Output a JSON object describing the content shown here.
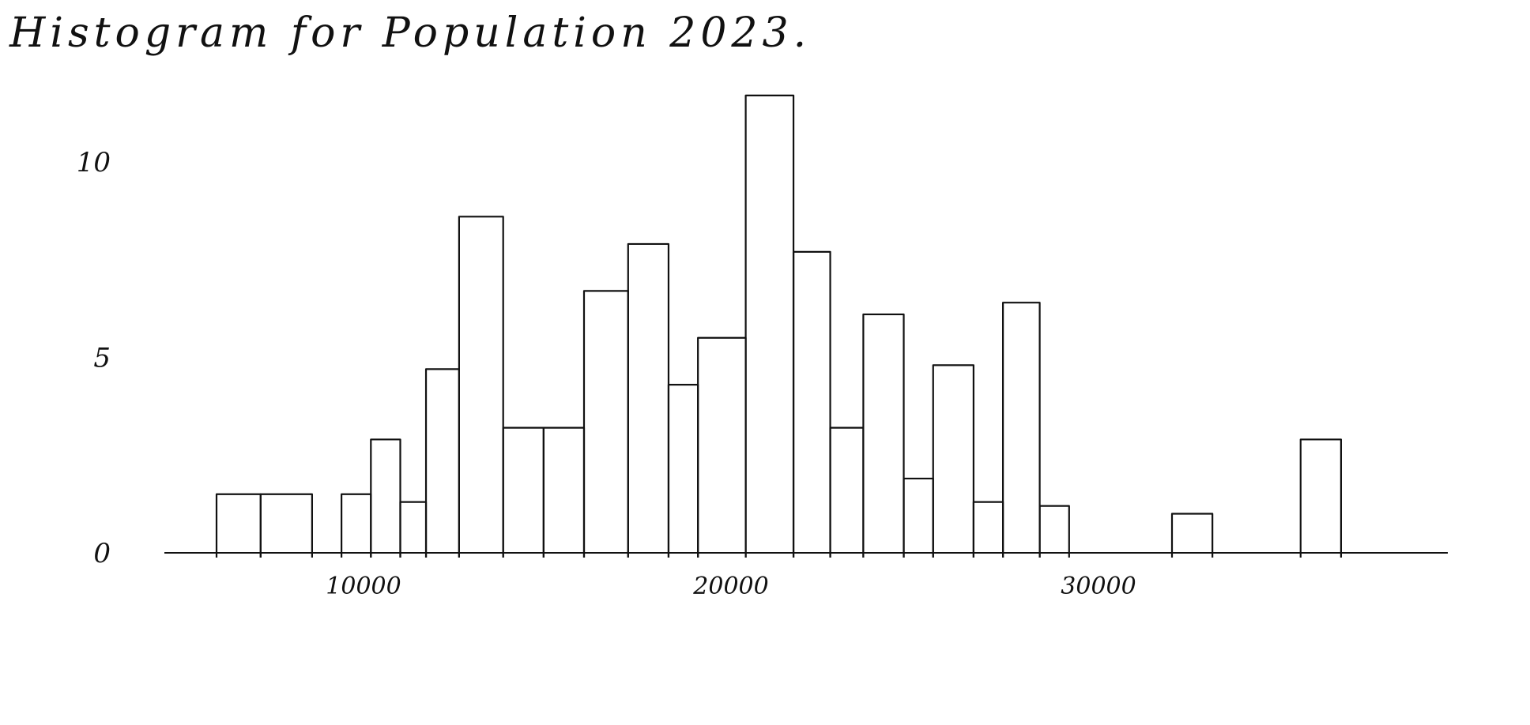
{
  "chart_data": {
    "type": "bar",
    "title": "Histogram for Population 2023.",
    "xlabel": "",
    "ylabel": "",
    "y_ticks": [
      {
        "value": 0,
        "label": "0"
      },
      {
        "value": 5,
        "label": "5"
      },
      {
        "value": 10,
        "label": "10"
      }
    ],
    "x_ticks": [
      {
        "value": 10000,
        "label": "10000"
      },
      {
        "value": 20000,
        "label": "20000"
      },
      {
        "value": 30000,
        "label": "30000"
      }
    ],
    "xlim": [
      5500,
      35500
    ],
    "ylim": [
      0,
      12
    ],
    "grid": false,
    "bins": [
      {
        "x0": 6000,
        "x1": 7200,
        "count": 1.5
      },
      {
        "x0": 7200,
        "x1": 8600,
        "count": 1.5
      },
      {
        "x0": 9400,
        "x1": 10200,
        "count": 1.5
      },
      {
        "x0": 10200,
        "x1": 11000,
        "count": 2.9
      },
      {
        "x0": 11000,
        "x1": 11700,
        "count": 1.3
      },
      {
        "x0": 11700,
        "x1": 12600,
        "count": 4.7
      },
      {
        "x0": 12600,
        "x1": 13800,
        "count": 8.6
      },
      {
        "x0": 13800,
        "x1": 14900,
        "count": 3.2
      },
      {
        "x0": 14900,
        "x1": 16000,
        "count": 3.2
      },
      {
        "x0": 16000,
        "x1": 17200,
        "count": 6.7
      },
      {
        "x0": 17200,
        "x1": 18300,
        "count": 7.9
      },
      {
        "x0": 18300,
        "x1": 19100,
        "count": 4.3
      },
      {
        "x0": 19100,
        "x1": 20400,
        "count": 5.5
      },
      {
        "x0": 20400,
        "x1": 21700,
        "count": 11.7
      },
      {
        "x0": 21700,
        "x1": 22700,
        "count": 7.7
      },
      {
        "x0": 22700,
        "x1": 23600,
        "count": 3.2
      },
      {
        "x0": 23600,
        "x1": 24700,
        "count": 6.1
      },
      {
        "x0": 24700,
        "x1": 25500,
        "count": 1.9
      },
      {
        "x0": 25500,
        "x1": 26600,
        "count": 4.8
      },
      {
        "x0": 26600,
        "x1": 27400,
        "count": 1.3
      },
      {
        "x0": 27400,
        "x1": 28400,
        "count": 6.4
      },
      {
        "x0": 28400,
        "x1": 29200,
        "count": 1.2
      },
      {
        "x0": 32000,
        "x1": 33100,
        "count": 1.0
      },
      {
        "x0": 35500,
        "x1": 36600,
        "count": 2.9
      }
    ]
  }
}
